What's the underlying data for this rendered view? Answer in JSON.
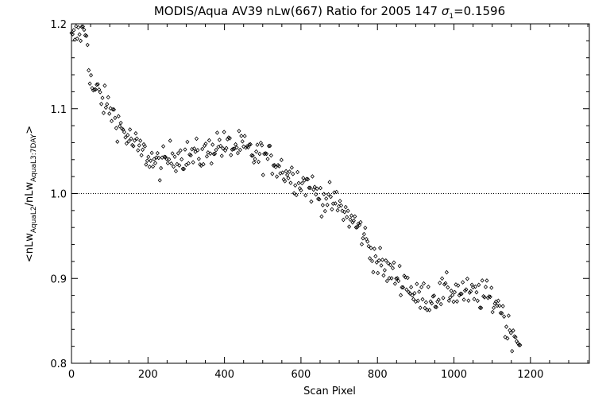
{
  "chart_data": {
    "type": "scatter",
    "title": {
      "prefix": "MODIS/Aqua AV39 nLw(667) Ratio for 2005 147 ",
      "sigma_symbol": "σ",
      "sigma_sub": "1",
      "sigma_value": "=0.1596"
    },
    "xlabel": "Scan Pixel",
    "ylabel": {
      "open": "<nLw",
      "num_sub": "AquaL2",
      "mid": "/nLw",
      "den_sub": "AquaL3:7DAY",
      "close": ">"
    },
    "xlim": [
      0,
      1354
    ],
    "ylim": [
      0.8,
      1.2
    ],
    "xticks": [
      0,
      200,
      400,
      600,
      800,
      1000,
      1200
    ],
    "xtick_labels": [
      "0",
      "200",
      "400",
      "600",
      "800",
      "1000",
      "1200"
    ],
    "yticks": [
      0.8,
      0.9,
      1.0,
      1.1,
      1.2
    ],
    "ytick_labels": [
      "0.8",
      "0.9",
      "1.0",
      "1.1",
      "1.2"
    ],
    "reference_line": {
      "y": 1.0,
      "style": "dotted"
    },
    "marker": "diamond",
    "trend": {
      "x": [
        0,
        10,
        20,
        30,
        40,
        50,
        60,
        70,
        80,
        100,
        120,
        140,
        160,
        180,
        200,
        220,
        240,
        260,
        280,
        300,
        320,
        340,
        360,
        380,
        400,
        420,
        440,
        460,
        480,
        500,
        520,
        540,
        560,
        580,
        600,
        620,
        640,
        660,
        680,
        700,
        720,
        740,
        760,
        780,
        800,
        820,
        840,
        860,
        880,
        900,
        920,
        940,
        960,
        980,
        1000,
        1020,
        1040,
        1060,
        1080,
        1100,
        1120,
        1140,
        1160,
        1175
      ],
      "y": [
        1.18,
        1.185,
        1.19,
        1.19,
        1.19,
        1.13,
        1.12,
        1.12,
        1.11,
        1.1,
        1.085,
        1.07,
        1.06,
        1.05,
        1.045,
        1.035,
        1.035,
        1.045,
        1.045,
        1.045,
        1.045,
        1.045,
        1.05,
        1.06,
        1.055,
        1.055,
        1.055,
        1.05,
        1.045,
        1.045,
        1.04,
        1.035,
        1.025,
        1.02,
        1.015,
        1.01,
        1.0,
        0.995,
        0.99,
        0.985,
        0.975,
        0.965,
        0.955,
        0.935,
        0.92,
        0.91,
        0.905,
        0.9,
        0.895,
        0.875,
        0.88,
        0.878,
        0.88,
        0.885,
        0.885,
        0.885,
        0.88,
        0.88,
        0.88,
        0.875,
        0.87,
        0.84,
        0.835,
        0.82
      ]
    },
    "points_per_pixel_step": 3,
    "scatter_spread": 0.009
  }
}
